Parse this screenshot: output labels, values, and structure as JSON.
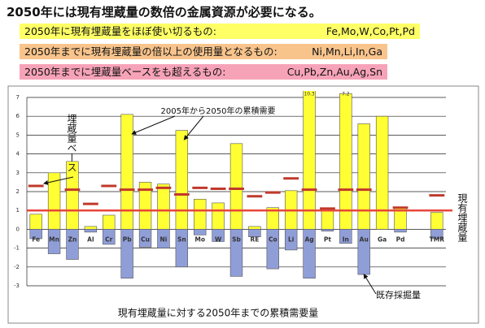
{
  "header": {
    "title": "2050年には現有埋蔵量の数倍の金属資源が必要になる。",
    "rows": [
      {
        "text": "2050年に現有埋蔵量をほぼ使い切るもの:",
        "elements": "Fe,Mo,W,Co,Pt,Pd",
        "color": "#ffff66"
      },
      {
        "text": "2050年までに現有埋蔵量の倍以上の使用量となるもの:",
        "elements": "Ni,Mn,Li,In,Ga",
        "color": "#f8c48c"
      },
      {
        "text": "2050年までに埋蔵量ベースをも超えるもの:",
        "elements": "Cu,Pb,Zn,Au,Ag,Sn",
        "color": "#f6a3b8"
      }
    ]
  },
  "chart_data": {
    "type": "bar",
    "xlabel": "現有埋蔵量に対する2050年までの累積需要量",
    "categories": [
      "Fe",
      "Mn",
      "Zn",
      "Al",
      "Cr",
      "Pb",
      "Cu",
      "Ni",
      "Sn",
      "Mo",
      "W",
      "Sb",
      "RE",
      "Co",
      "Li",
      "Ag",
      "Pt",
      "In",
      "Au",
      "Ga",
      "Pd",
      null,
      "TMR"
    ],
    "series": [
      {
        "name": "2005年から2050年の累積需要",
        "color": "#ffff33",
        "values": [
          0.8,
          3.0,
          3.6,
          0.15,
          0.75,
          6.1,
          2.5,
          2.4,
          5.25,
          1.6,
          1.4,
          4.55,
          0.15,
          1.15,
          2.05,
          10.3,
          1.1,
          7.2,
          5.6,
          6.0,
          1.15,
          null,
          0.9
        ],
        "value_labels": [
          null,
          null,
          null,
          null,
          null,
          null,
          null,
          null,
          null,
          null,
          null,
          null,
          null,
          null,
          null,
          "10.3",
          null,
          "7.2",
          null,
          null,
          null,
          null,
          null
        ]
      },
      {
        "name": "既存採掘量",
        "color": "#909ed8",
        "values": [
          -0.5,
          -1.3,
          -1.6,
          -0.15,
          -0.8,
          -2.6,
          -0.95,
          -1.0,
          -2.0,
          -0.3,
          -0.65,
          -2.5,
          -0.4,
          -2.1,
          -1.1,
          -2.6,
          -0.1,
          -0.75,
          -2.4,
          null,
          -0.15,
          null,
          -0.5
        ]
      },
      {
        "name": "埋蔵量ベース",
        "color": "#c0392b",
        "values": [
          2.3,
          null,
          2.1,
          1.35,
          2.3,
          2.1,
          2.1,
          2.2,
          1.85,
          2.2,
          2.15,
          2.15,
          1.75,
          1.95,
          2.7,
          2.1,
          1.1,
          2.1,
          2.1,
          null,
          1.15,
          null,
          1.8
        ]
      }
    ],
    "reference_line": {
      "value": 1,
      "label": "現有埋蔵量",
      "color": "#e8463a"
    },
    "ylim": [
      -3,
      7
    ],
    "yticks": [
      -3,
      -2,
      -1,
      0,
      1,
      2,
      3,
      4,
      5,
      6,
      7
    ],
    "grid": true
  }
}
